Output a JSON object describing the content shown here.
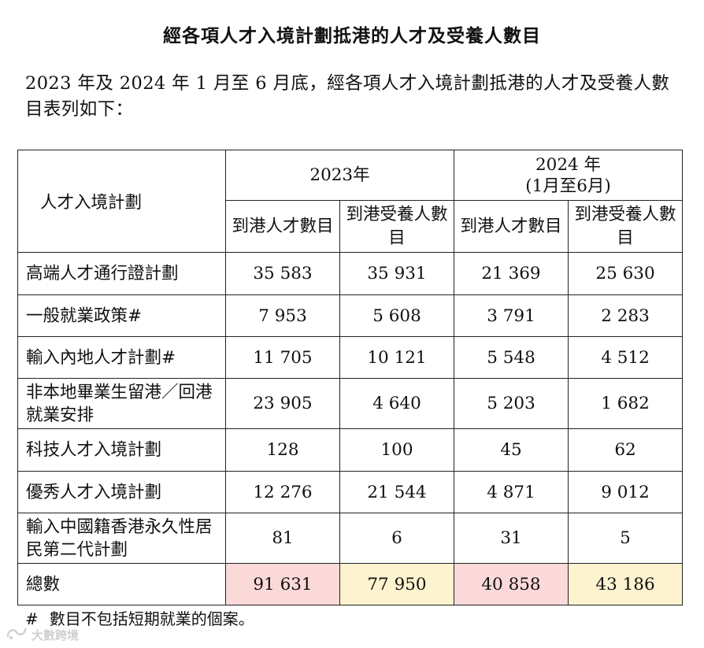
{
  "title": "經各項人才入境計劃抵港的人才及受養人數目",
  "intro": "2023 年及 2024 年 1 月至 6 月底，經各項人才入境計劃抵港的人才及受養人數目表列如下：",
  "table": {
    "scheme_header": "人才入境計劃",
    "year_2023": "2023年",
    "year_2024_line1": "2024 年",
    "year_2024_line2": "(1月至6月)",
    "sub_talent": "到港人才數目",
    "sub_dependant": "到港受養人數目",
    "rows": [
      {
        "label": "高端人才通行證計劃",
        "v": [
          "35 583",
          "35 931",
          "21 369",
          "25 630"
        ]
      },
      {
        "label": "一般就業政策#",
        "v": [
          "7 953",
          "5 608",
          "3 791",
          "2 283"
        ]
      },
      {
        "label": "輸入內地人才計劃#",
        "v": [
          "11 705",
          "10 121",
          "5 548",
          "4 512"
        ]
      },
      {
        "label": "非本地畢業生留港／回港就業安排",
        "v": [
          "23 905",
          "4 640",
          "5 203",
          "1 682"
        ]
      },
      {
        "label": "科技人才入境計劃",
        "v": [
          "128",
          "100",
          "45",
          "62"
        ]
      },
      {
        "label": "優秀人才入境計劃",
        "v": [
          "12 276",
          "21 544",
          "4 871",
          "9 012"
        ]
      },
      {
        "label": "輸入中國籍香港永久性居民第二代計劃",
        "v": [
          "81",
          "6",
          "31",
          "5"
        ]
      }
    ],
    "total": {
      "label": "總數",
      "v": [
        "91 631",
        "77 950",
        "40 858",
        "43 186"
      ]
    }
  },
  "note": {
    "mark": "#",
    "text": "數目不包括短期就業的個案。"
  },
  "watermark": {
    "text": "大數跨境",
    "icon": "logo-icon"
  },
  "colors": {
    "highlight_pink": "#fbd9d9",
    "highlight_yellow": "#fdf3cf"
  }
}
